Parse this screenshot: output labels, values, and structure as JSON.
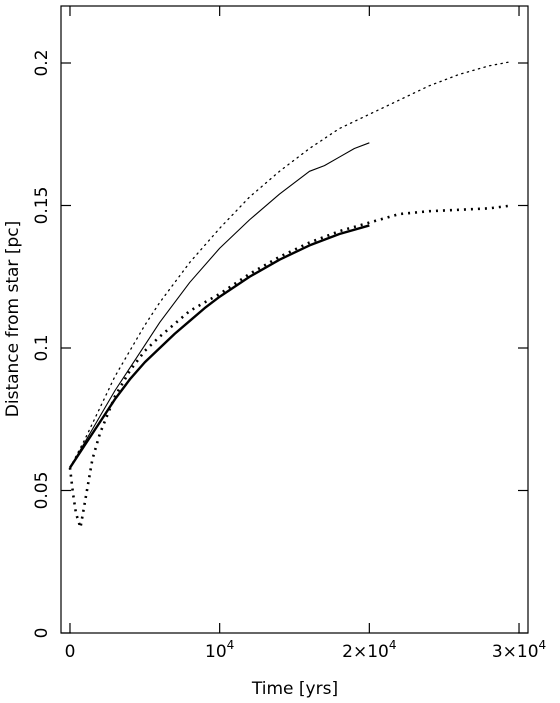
{
  "chart_data": {
    "type": "line",
    "title": "",
    "xlabel": "Time [yrs]",
    "ylabel": "Distance from star [pc]",
    "xlim": [
      -600,
      30600
    ],
    "ylim": [
      0,
      0.22
    ],
    "grid": false,
    "legend": "none",
    "x_ticks": [
      {
        "value": 0,
        "base": "0",
        "exp": ""
      },
      {
        "value": 10000,
        "base": "10",
        "exp": "4"
      },
      {
        "value": 20000,
        "base": "2×10",
        "exp": "4"
      },
      {
        "value": 30000,
        "base": "3×10",
        "exp": "4"
      }
    ],
    "y_ticks": [
      {
        "value": 0,
        "label": "0"
      },
      {
        "value": 0.05,
        "label": "0.05"
      },
      {
        "value": 0.1,
        "label": "0.1"
      },
      {
        "value": 0.15,
        "label": "0.15"
      },
      {
        "value": 0.2,
        "label": "0.2"
      }
    ],
    "series": [
      {
        "style": "thin-dotted",
        "x": [
          0,
          1000,
          2000,
          3000,
          4000,
          5000,
          6000,
          8000,
          10000,
          12000,
          14000,
          16000,
          18000,
          20000,
          22000,
          24000,
          26000,
          28000,
          29500
        ],
        "y": [
          0.058,
          0.068,
          0.079,
          0.09,
          0.099,
          0.108,
          0.116,
          0.13,
          0.142,
          0.153,
          0.162,
          0.17,
          0.177,
          0.182,
          0.187,
          0.192,
          0.196,
          0.199,
          0.2005
        ]
      },
      {
        "style": "thin-solid",
        "x": [
          0,
          1000,
          2000,
          3000,
          4000,
          5000,
          6000,
          8000,
          10000,
          12000,
          14000,
          16000,
          17000,
          18000,
          19000,
          20000
        ],
        "y": [
          0.058,
          0.067,
          0.076,
          0.085,
          0.093,
          0.101,
          0.109,
          0.123,
          0.135,
          0.145,
          0.154,
          0.162,
          0.164,
          0.167,
          0.17,
          0.172
        ]
      },
      {
        "style": "thick-solid",
        "x": [
          0,
          1000,
          2000,
          3000,
          4000,
          5000,
          6000,
          7000,
          8000,
          9000,
          10000,
          12000,
          14000,
          16000,
          18000,
          20000
        ],
        "y": [
          0.058,
          0.066,
          0.074,
          0.082,
          0.089,
          0.095,
          0.1,
          0.105,
          0.1095,
          0.114,
          0.118,
          0.125,
          0.131,
          0.136,
          0.14,
          0.143
        ]
      },
      {
        "style": "thick-dotted",
        "x": [
          0,
          200,
          400,
          700,
          1000,
          1500,
          2000,
          3000,
          4000,
          5000,
          6000,
          8000,
          10000,
          12000,
          14000,
          16000,
          18000,
          20000,
          22000,
          24000,
          26000,
          28000,
          29500
        ],
        "y": [
          0.058,
          0.049,
          0.042,
          0.037,
          0.046,
          0.061,
          0.07,
          0.083,
          0.092,
          0.099,
          0.104,
          0.113,
          0.119,
          0.126,
          0.132,
          0.137,
          0.141,
          0.144,
          0.147,
          0.148,
          0.1485,
          0.149,
          0.15
        ]
      }
    ]
  }
}
